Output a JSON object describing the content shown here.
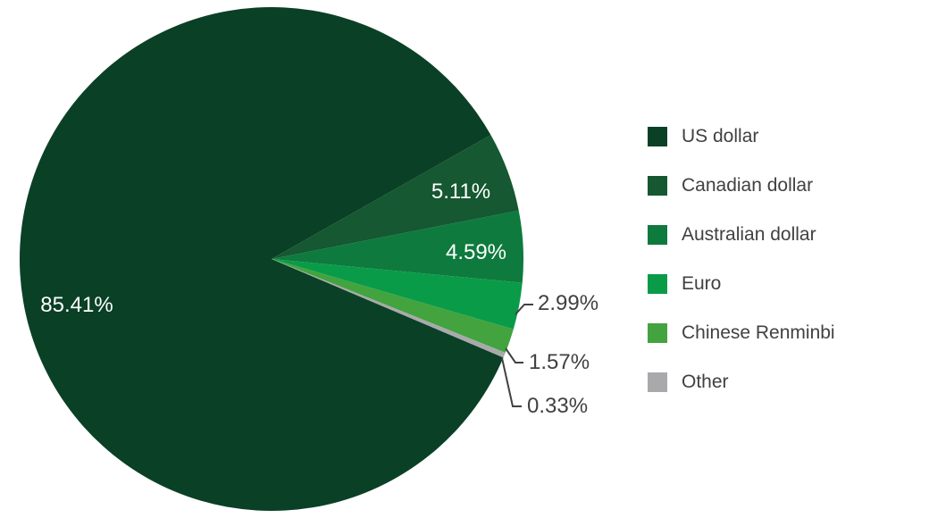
{
  "figure": {
    "background_color": "#FFFFFF"
  },
  "chart_data": {
    "type": "pie",
    "categories": [
      "US dollar",
      "Canadian dollar",
      "Australian dollar",
      "Euro",
      "Chinese Renminbi",
      "Other"
    ],
    "values": [
      85.41,
      5.11,
      4.59,
      2.99,
      1.57,
      0.33
    ],
    "labels": [
      "85.41%",
      "5.11%",
      "4.59%",
      "2.99%",
      "1.57%",
      "0.33%"
    ],
    "colors": [
      "#0A4026",
      "#155831",
      "#0E7A3E",
      "#0A9B48",
      "#42A33F",
      "#A9A9AC"
    ],
    "legend_position": "right",
    "start_angle_deg": 23.03,
    "inside_label_color": "#FFFFFF",
    "outside_label_color": "#414042",
    "leader_line_color": "#414042"
  }
}
